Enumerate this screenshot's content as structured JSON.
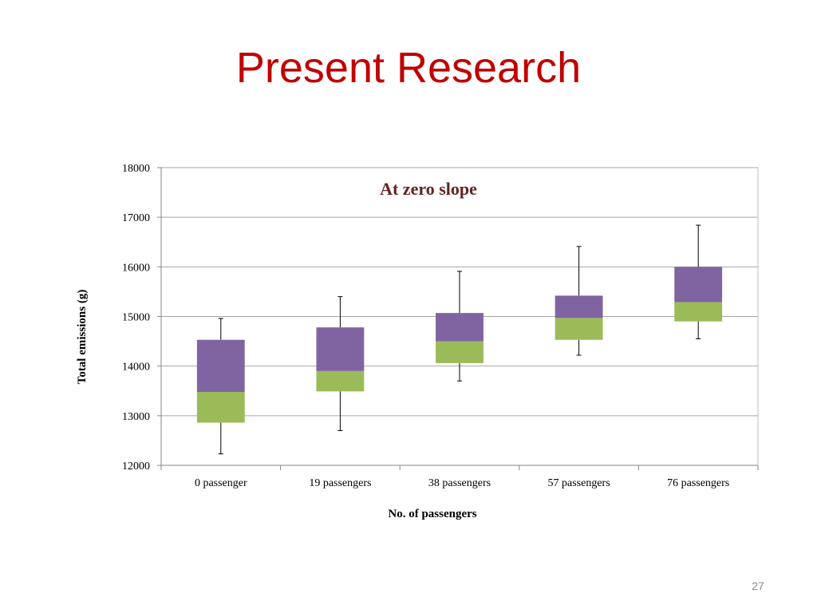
{
  "slide": {
    "title": "Present Research",
    "page_number": "27"
  },
  "colors": {
    "title": "#c00000",
    "upper_box": "#8064a2",
    "lower_box": "#9bbb59",
    "chart_title": "#632423"
  },
  "chart_data": {
    "type": "box",
    "title": "At zero slope",
    "xlabel": "No. of passengers",
    "ylabel": "Total emissions (g)",
    "ylim": [
      12000,
      18000
    ],
    "yticks": [
      12000,
      13000,
      14000,
      15000,
      16000,
      17000,
      18000
    ],
    "grid": true,
    "categories": [
      "0 passenger",
      "19 passengers",
      "38 passengers",
      "57 passengers",
      "76 passengers"
    ],
    "min": [
      12230,
      12700,
      13700,
      14220,
      14550
    ],
    "q1": [
      12860,
      13490,
      14060,
      14530,
      14900
    ],
    "median": [
      13480,
      13900,
      14500,
      14970,
      15290
    ],
    "q3": [
      14530,
      14780,
      15070,
      15420,
      16000
    ],
    "max": [
      14960,
      15400,
      15910,
      16410,
      16840
    ]
  }
}
